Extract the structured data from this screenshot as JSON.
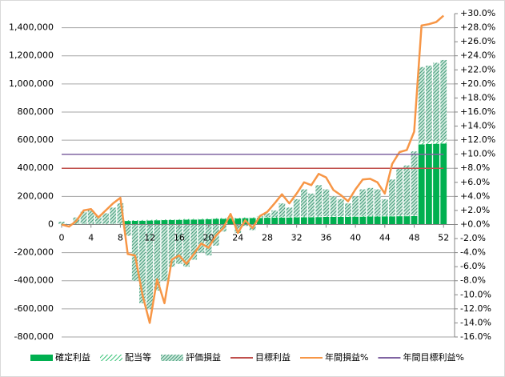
{
  "chart_data": {
    "type": "combo",
    "x": [
      0,
      1,
      2,
      3,
      4,
      5,
      6,
      7,
      8,
      9,
      10,
      11,
      12,
      13,
      14,
      15,
      16,
      17,
      18,
      19,
      20,
      21,
      22,
      23,
      24,
      25,
      26,
      27,
      28,
      29,
      30,
      31,
      32,
      33,
      34,
      35,
      36,
      37,
      38,
      39,
      40,
      41,
      42,
      43,
      44,
      45,
      46,
      47,
      48,
      49,
      50,
      51,
      52
    ],
    "xlim": [
      0,
      53.5
    ],
    "xticks": [
      0,
      4,
      8,
      12,
      16,
      20,
      24,
      28,
      32,
      36,
      40,
      44,
      48,
      52
    ],
    "ylim": [
      -800000,
      1500000
    ],
    "yticks": [
      {
        "value": -800000,
        "label": "-800,000"
      },
      {
        "value": -600000,
        "label": "-600,000"
      },
      {
        "value": -400000,
        "label": "-400,000"
      },
      {
        "value": -200000,
        "label": "-200,000"
      },
      0,
      {
        "value": 200000,
        "label": "200,000"
      },
      {
        "value": 400000,
        "label": "400,000"
      },
      {
        "value": 600000,
        "label": "600,000"
      },
      {
        "value": 800000,
        "label": "800,000"
      },
      {
        "value": 1000000,
        "label": "1,000,000"
      },
      {
        "value": 1200000,
        "label": "1,200,000"
      },
      {
        "value": 1400000,
        "label": "1,400,000"
      }
    ],
    "ytick_negative_color": "#ff0000",
    "y2lim": [
      -16,
      30
    ],
    "y2ticks": [
      {
        "value": -16,
        "label": "-16.0%"
      },
      {
        "value": -14,
        "label": "-14.0%"
      },
      {
        "value": -12,
        "label": "-12.0%"
      },
      {
        "value": -10,
        "label": "-10.0%"
      },
      {
        "value": -8,
        "label": "-8.0%"
      },
      {
        "value": -6,
        "label": "-6.0%"
      },
      {
        "value": -4,
        "label": "-4.0%"
      },
      {
        "value": -2,
        "label": "-2.0%"
      },
      {
        "value": 0,
        "label": "+0.0%"
      },
      {
        "value": 2,
        "label": "+2.0%"
      },
      {
        "value": 4,
        "label": "+4.0%"
      },
      {
        "value": 6,
        "label": "+6.0%"
      },
      {
        "value": 8,
        "label": "+8.0%"
      },
      {
        "value": 10,
        "label": "+10.0%"
      },
      {
        "value": 12,
        "label": "+12.0%"
      },
      {
        "value": 14,
        "label": "+14.0%"
      },
      {
        "value": 16,
        "label": "+16.0%"
      },
      {
        "value": 18,
        "label": "+18.0%"
      },
      {
        "value": 20,
        "label": "+20.0%"
      },
      {
        "value": 22,
        "label": "+22.0%"
      },
      {
        "value": 24,
        "label": "+24.0%"
      },
      {
        "value": 26,
        "label": "+26.0%"
      },
      {
        "value": 28,
        "label": "+28.0%"
      },
      {
        "value": 30,
        "label": "+30.0%"
      }
    ],
    "y2tick_positive_color": "#ff0000",
    "y2tick_negative_color": "#0000ff",
    "grid": true,
    "legend": "bottom",
    "series": [
      {
        "name": "確定利益",
        "kind": "bar",
        "pattern": "solid",
        "color": "#00b050",
        "values": [
          0,
          0,
          0,
          0,
          0,
          0,
          0,
          0,
          0,
          25000,
          26000,
          27000,
          28000,
          30000,
          31000,
          32000,
          33000,
          34000,
          35000,
          36000,
          38000,
          40000,
          41000,
          42000,
          43000,
          45000,
          46000,
          47000,
          48000,
          49000,
          50000,
          50000,
          51000,
          52000,
          52000,
          53000,
          54000,
          54000,
          55000,
          55000,
          56000,
          56000,
          57000,
          57000,
          58000,
          58000,
          59000,
          59000,
          60000,
          570000,
          572000,
          574000,
          576000
        ]
      },
      {
        "name": "配当等",
        "kind": "bar",
        "pattern": "diagonal",
        "color": "#00b050",
        "values": [
          5000,
          5000,
          5000,
          5000,
          5000,
          5000,
          5000,
          5000,
          5000,
          5000,
          5000,
          5000,
          5000,
          5000,
          5000,
          5000,
          5000,
          5000,
          5000,
          5000,
          5000,
          5000,
          5000,
          5000,
          5000,
          5000,
          5000,
          5000,
          5000,
          5000,
          5000,
          5000,
          5000,
          5000,
          5000,
          5000,
          5000,
          5000,
          5000,
          5000,
          5000,
          5000,
          5000,
          5000,
          5000,
          5000,
          5000,
          5000,
          5000,
          20000,
          20000,
          20000,
          20000
        ]
      },
      {
        "name": "評価損益",
        "kind": "bar",
        "pattern": "dense",
        "color": "#3f9a78",
        "values": [
          15000,
          0,
          45000,
          85000,
          95000,
          55000,
          75000,
          115000,
          145000,
          -80000,
          -400000,
          -560000,
          -600000,
          -470000,
          -400000,
          -300000,
          -280000,
          -300000,
          -250000,
          -200000,
          -220000,
          -150000,
          -50000,
          5000,
          -60000,
          -10000,
          -40000,
          8000,
          27000,
          46000,
          95000,
          65000,
          124000,
          193000,
          163000,
          222000,
          191000,
          141000,
          120000,
          90000,
          139000,
          189000,
          198000,
          188000,
          117000,
          257000,
          336000,
          356000,
          455000,
          530000,
          538000,
          556000,
          574000
        ]
      },
      {
        "name": "目標利益",
        "kind": "line",
        "color": "#c0504d",
        "values": [
          400000,
          400000,
          400000,
          400000,
          400000,
          400000,
          400000,
          400000,
          400000,
          400000,
          400000,
          400000,
          400000,
          400000,
          400000,
          400000,
          400000,
          400000,
          400000,
          400000,
          400000,
          400000,
          400000,
          400000,
          400000,
          400000,
          400000,
          400000,
          400000,
          400000,
          400000,
          400000,
          400000,
          400000,
          400000,
          400000,
          400000,
          400000,
          400000,
          400000,
          400000,
          400000,
          400000,
          400000,
          400000,
          400000,
          400000,
          400000,
          400000,
          400000,
          400000,
          400000,
          400000
        ]
      },
      {
        "name": "年間損益%",
        "kind": "line",
        "axis": "y2",
        "color": "#f79646",
        "values": [
          0,
          -0.3,
          0.5,
          2,
          2.2,
          1,
          2,
          3,
          3.8,
          -4.2,
          -4.4,
          -10,
          -14,
          -7.8,
          -11.2,
          -5,
          -4.4,
          -5.6,
          -4.2,
          -2.7,
          -3.3,
          -1.6,
          -0.5,
          1.5,
          -1.2,
          0.6,
          -0.5,
          1.2,
          1.8,
          3,
          4.3,
          3,
          4.4,
          6,
          5.6,
          7.2,
          6.7,
          4.9,
          4.2,
          3.3,
          5,
          6.4,
          6.5,
          6,
          4.4,
          8.6,
          10.3,
          10.6,
          13.2,
          28.3,
          28.5,
          28.8,
          29.7
        ]
      },
      {
        "name": "年間目標利益%",
        "kind": "line",
        "axis": "y2",
        "color": "#8064a2",
        "values": [
          10,
          10,
          10,
          10,
          10,
          10,
          10,
          10,
          10,
          10,
          10,
          10,
          10,
          10,
          10,
          10,
          10,
          10,
          10,
          10,
          10,
          10,
          10,
          10,
          10,
          10,
          10,
          10,
          10,
          10,
          10,
          10,
          10,
          10,
          10,
          10,
          10,
          10,
          10,
          10,
          10,
          10,
          10,
          10,
          10,
          10,
          10,
          10,
          10,
          10,
          10,
          10,
          10
        ]
      }
    ]
  }
}
